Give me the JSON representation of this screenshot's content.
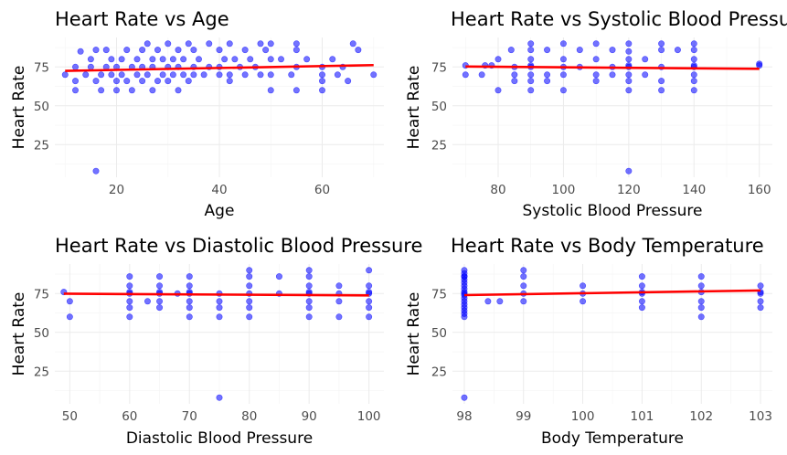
{
  "chart_data": [
    {
      "type": "scatter",
      "title": "Heart Rate vs Age",
      "xlabel": "Age",
      "ylabel": "Heart Rate",
      "xlim": [
        8,
        72
      ],
      "ylim": [
        4,
        94
      ],
      "xticks": [
        20,
        40,
        60
      ],
      "yticks": [
        25,
        50,
        75
      ],
      "grid": true,
      "point_color": "#0000ff",
      "trend": {
        "color": "#ff0000",
        "x": [
          10,
          70
        ],
        "y": [
          72.5,
          76.2
        ]
      },
      "x": [
        10,
        12,
        12,
        12,
        13,
        14,
        15,
        15,
        16,
        16,
        17,
        17,
        18,
        18,
        19,
        19,
        20,
        20,
        20,
        21,
        21,
        22,
        22,
        23,
        23,
        24,
        24,
        25,
        25,
        25,
        26,
        26,
        27,
        27,
        27,
        28,
        28,
        29,
        29,
        30,
        30,
        30,
        31,
        31,
        32,
        32,
        32,
        33,
        33,
        34,
        34,
        35,
        35,
        35,
        36,
        37,
        38,
        38,
        40,
        40,
        40,
        41,
        42,
        42,
        42,
        43,
        44,
        45,
        45,
        46,
        47,
        48,
        48,
        49,
        50,
        50,
        50,
        50,
        52,
        54,
        55,
        55,
        55,
        55,
        57,
        60,
        60,
        60,
        60,
        62,
        63,
        64,
        65,
        66,
        67,
        70,
        16
      ],
      "y": [
        70,
        75,
        60,
        66,
        85,
        70,
        75,
        80,
        66,
        86,
        70,
        60,
        75,
        86,
        70,
        80,
        66,
        75,
        60,
        70,
        80,
        86,
        66,
        75,
        60,
        70,
        80,
        75,
        66,
        86,
        90,
        70,
        80,
        60,
        75,
        66,
        86,
        70,
        80,
        75,
        90,
        66,
        70,
        80,
        86,
        75,
        60,
        70,
        80,
        90,
        66,
        75,
        86,
        70,
        80,
        70,
        75,
        90,
        70,
        75,
        86,
        80,
        90,
        70,
        66,
        80,
        75,
        70,
        86,
        80,
        75,
        90,
        70,
        86,
        90,
        80,
        70,
        60,
        80,
        70,
        75,
        86,
        90,
        60,
        80,
        75,
        70,
        66,
        60,
        80,
        70,
        75,
        66,
        90,
        86,
        70,
        8
      ]
    },
    {
      "type": "scatter",
      "title": "Heart Rate vs Systolic Blood Pressure",
      "xlabel": "Systolic Blood Pressure",
      "ylabel": "Heart Rate",
      "xlim": [
        66,
        164
      ],
      "ylim": [
        4,
        94
      ],
      "xticks": [
        80,
        100,
        120,
        140,
        160
      ],
      "yticks": [
        25,
        50,
        75
      ],
      "grid": true,
      "point_color": "#0000ff",
      "trend": {
        "color": "#ff0000",
        "x": [
          70,
          160
        ],
        "y": [
          75.3,
          73.8
        ]
      },
      "x": [
        70,
        70,
        75,
        76,
        78,
        80,
        80,
        84,
        85,
        85,
        85,
        90,
        90,
        90,
        90,
        90,
        90,
        90,
        90,
        95,
        95,
        95,
        100,
        100,
        100,
        100,
        100,
        105,
        105,
        110,
        110,
        110,
        110,
        115,
        115,
        115,
        120,
        120,
        120,
        120,
        120,
        120,
        120,
        120,
        125,
        125,
        130,
        130,
        130,
        130,
        130,
        135,
        140,
        140,
        140,
        140,
        140,
        140,
        140,
        140,
        160,
        160,
        120
      ],
      "y": [
        76,
        70,
        70,
        76,
        76,
        80,
        60,
        86,
        75,
        70,
        66,
        86,
        80,
        75,
        70,
        66,
        60,
        76,
        90,
        86,
        66,
        70,
        90,
        80,
        75,
        70,
        60,
        86,
        75,
        90,
        80,
        70,
        66,
        86,
        75,
        70,
        90,
        80,
        76,
        70,
        66,
        60,
        85,
        75,
        80,
        70,
        90,
        86,
        75,
        66,
        60,
        86,
        90,
        86,
        80,
        75,
        70,
        66,
        60,
        76,
        76,
        77,
        8
      ]
    },
    {
      "type": "scatter",
      "title": "Heart Rate vs Diastolic Blood Pressure",
      "xlabel": "Diastolic Blood Pressure",
      "ylabel": "Heart Rate",
      "xlim": [
        47.5,
        102.5
      ],
      "ylim": [
        4,
        94
      ],
      "xticks": [
        50,
        60,
        70,
        80,
        90,
        100
      ],
      "yticks": [
        25,
        50,
        75
      ],
      "grid": true,
      "point_color": "#0000ff",
      "trend": {
        "color": "#ff0000",
        "x": [
          49,
          100
        ],
        "y": [
          74.9,
          73.8
        ]
      },
      "x": [
        49,
        50,
        50,
        60,
        60,
        60,
        60,
        60,
        60,
        60,
        63,
        65,
        65,
        65,
        65,
        65,
        65,
        68,
        70,
        70,
        70,
        70,
        70,
        70,
        70,
        75,
        75,
        75,
        75,
        80,
        80,
        80,
        80,
        80,
        80,
        80,
        85,
        85,
        90,
        90,
        90,
        90,
        90,
        90,
        90,
        90,
        95,
        95,
        95,
        95,
        100,
        100,
        100,
        100,
        100,
        100,
        100,
        75
      ],
      "y": [
        76,
        70,
        60,
        86,
        80,
        75,
        70,
        66,
        60,
        76,
        70,
        86,
        80,
        75,
        70,
        66,
        76,
        75,
        86,
        80,
        75,
        70,
        66,
        60,
        76,
        75,
        70,
        66,
        60,
        90,
        86,
        80,
        75,
        70,
        66,
        60,
        86,
        75,
        90,
        86,
        80,
        75,
        70,
        66,
        60,
        76,
        80,
        75,
        70,
        60,
        90,
        80,
        75,
        70,
        66,
        60,
        76,
        8
      ]
    },
    {
      "type": "scatter",
      "title": "Heart Rate vs Body Temperature",
      "xlabel": "Body Temperature",
      "ylabel": "Heart Rate",
      "xlim": [
        97.8,
        103.2
      ],
      "ylim": [
        4,
        94
      ],
      "xticks": [
        98,
        99,
        100,
        101,
        102,
        103
      ],
      "yticks": [
        25,
        50,
        75
      ],
      "grid": true,
      "point_color": "#0000ff",
      "trend": {
        "color": "#ff0000",
        "x": [
          98,
          103
        ],
        "y": [
          74.0,
          77.0
        ]
      },
      "x": [
        98,
        98,
        98,
        98,
        98,
        98,
        98,
        98,
        98,
        98,
        98,
        98,
        98,
        98,
        98,
        98,
        98,
        98,
        98.4,
        98.6,
        99,
        99,
        99,
        99,
        99,
        100,
        100,
        100,
        101,
        101,
        101,
        101,
        101,
        101,
        102,
        102,
        102,
        102,
        102,
        102,
        103,
        103,
        103,
        103,
        103,
        98
      ],
      "y": [
        90,
        88,
        86,
        84,
        82,
        80,
        78,
        76,
        75,
        74,
        72,
        70,
        68,
        66,
        64,
        62,
        60,
        86,
        70,
        70,
        90,
        80,
        75,
        70,
        86,
        80,
        75,
        70,
        86,
        80,
        76,
        75,
        70,
        66,
        86,
        80,
        76,
        70,
        66,
        60,
        80,
        76,
        75,
        70,
        66,
        8
      ]
    }
  ]
}
